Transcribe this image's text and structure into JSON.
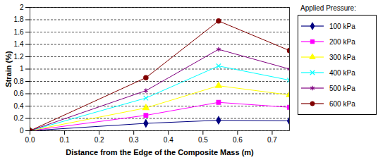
{
  "chart_data": {
    "type": "line",
    "x_label": "Distance from the Edge of the Composite Mass (m)",
    "y_label": "Strain (%)",
    "legend_title": "Applied Pressure:",
    "legend": "right",
    "grid": true,
    "x": [
      0,
      0.335,
      0.545,
      0.75
    ],
    "xlim": [
      0,
      0.75
    ],
    "xticks": [
      {
        "value": 0,
        "label": "0.0"
      },
      0.1,
      0.2,
      0.3,
      0.4,
      0.5,
      0.6,
      0.7
    ],
    "ylim": [
      0,
      2
    ],
    "yticks": [
      0,
      0.2,
      0.4,
      0.6,
      0.8,
      1,
      1.2,
      1.4,
      1.6,
      1.8,
      2
    ],
    "series": [
      {
        "name": "100 kPa",
        "color": "#000080",
        "marker": "diamond",
        "values": [
          0,
          0.12,
          0.17,
          0.16
        ]
      },
      {
        "name": "200 kPa",
        "color": "#ff00ff",
        "marker": "square",
        "values": [
          0,
          0.25,
          0.46,
          0.38
        ]
      },
      {
        "name": "300 kPa",
        "color": "#ffff00",
        "marker": "triangle",
        "values": [
          0,
          0.37,
          0.73,
          0.58
        ]
      },
      {
        "name": "400 kPa",
        "color": "#00ffff",
        "marker": "times",
        "values": [
          0,
          0.53,
          1.05,
          0.82
        ]
      },
      {
        "name": "500 kPa",
        "color": "#800080",
        "marker": "asterisk",
        "values": [
          0,
          0.65,
          1.32,
          1.0
        ]
      },
      {
        "name": "600 kPa",
        "color": "#800000",
        "marker": "circle",
        "values": [
          0,
          0.86,
          1.78,
          1.3
        ]
      }
    ]
  }
}
